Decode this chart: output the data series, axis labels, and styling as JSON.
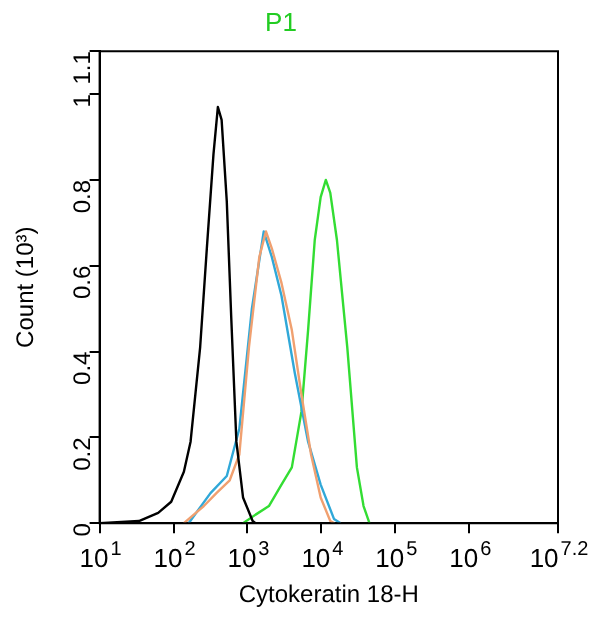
{
  "chart_data": {
    "type": "line",
    "title": "P1",
    "xlabel": "Cytokeratin 18-H",
    "ylabel": "Count (10³)",
    "log": "x",
    "grid": false,
    "legend": false,
    "marker": "none",
    "line_style": "solid",
    "xlim": [
      10,
      15848932
    ],
    "xticks": [
      {
        "value": 10,
        "label": "10$^{1}$"
      },
      {
        "value": 100,
        "label": "10$^{2}$"
      },
      {
        "value": 1000,
        "label": "10$^{3}$"
      },
      {
        "value": 10000,
        "label": "10$^{4}$"
      },
      {
        "value": 100000,
        "label": "10$^{5}$"
      },
      {
        "value": 1000000,
        "label": "10$^{6}$"
      },
      {
        "value": 15848932,
        "label": "10$^{7.2}$"
      }
    ],
    "ylim": [
      0,
      1.1
    ],
    "yticks": [
      0,
      0.2,
      0.4,
      0.6,
      0.8,
      1,
      1.1
    ],
    "series": [
      {
        "color": "#000000",
        "x": [
          10,
          34,
          62,
          93,
          138,
          170,
          229,
          282,
          347,
          398,
          447,
          525,
          603,
          708,
          871,
          1175,
          1288
        ],
        "values": [
          0,
          0.005,
          0.024,
          0.05,
          0.12,
          0.19,
          0.41,
          0.64,
          0.86,
          0.97,
          0.94,
          0.75,
          0.48,
          0.19,
          0.06,
          0.005,
          0
        ]
      },
      {
        "color": "#f0a070",
        "x": [
          138,
          257,
          380,
          575,
          776,
          1047,
          1445,
          1778,
          2138,
          2884,
          3981,
          5370,
          7244,
          9772,
          13183,
          15000
        ],
        "values": [
          0,
          0.04,
          0.07,
          0.1,
          0.16,
          0.41,
          0.62,
          0.68,
          0.64,
          0.56,
          0.45,
          0.3,
          0.16,
          0.06,
          0.005,
          0
        ]
      },
      {
        "color": "#30a8d8",
        "x": [
          160,
          316,
          525,
          776,
          1148,
          1660,
          2138,
          2884,
          4365,
          6607,
          9772,
          14791,
          18197
        ],
        "values": [
          0,
          0.07,
          0.11,
          0.22,
          0.5,
          0.68,
          0.62,
          0.53,
          0.35,
          0.19,
          0.09,
          0.01,
          0
        ]
      },
      {
        "color": "#33dd33",
        "x": [
          871,
          1288,
          1950,
          2884,
          3981,
          5370,
          6607,
          8128,
          9772,
          11482,
          13183,
          16218,
          22387,
          30200,
          37154,
          44668
        ],
        "values": [
          0,
          0.02,
          0.04,
          0.09,
          0.13,
          0.26,
          0.45,
          0.66,
          0.76,
          0.8,
          0.77,
          0.66,
          0.41,
          0.13,
          0.04,
          0
        ]
      }
    ]
  }
}
